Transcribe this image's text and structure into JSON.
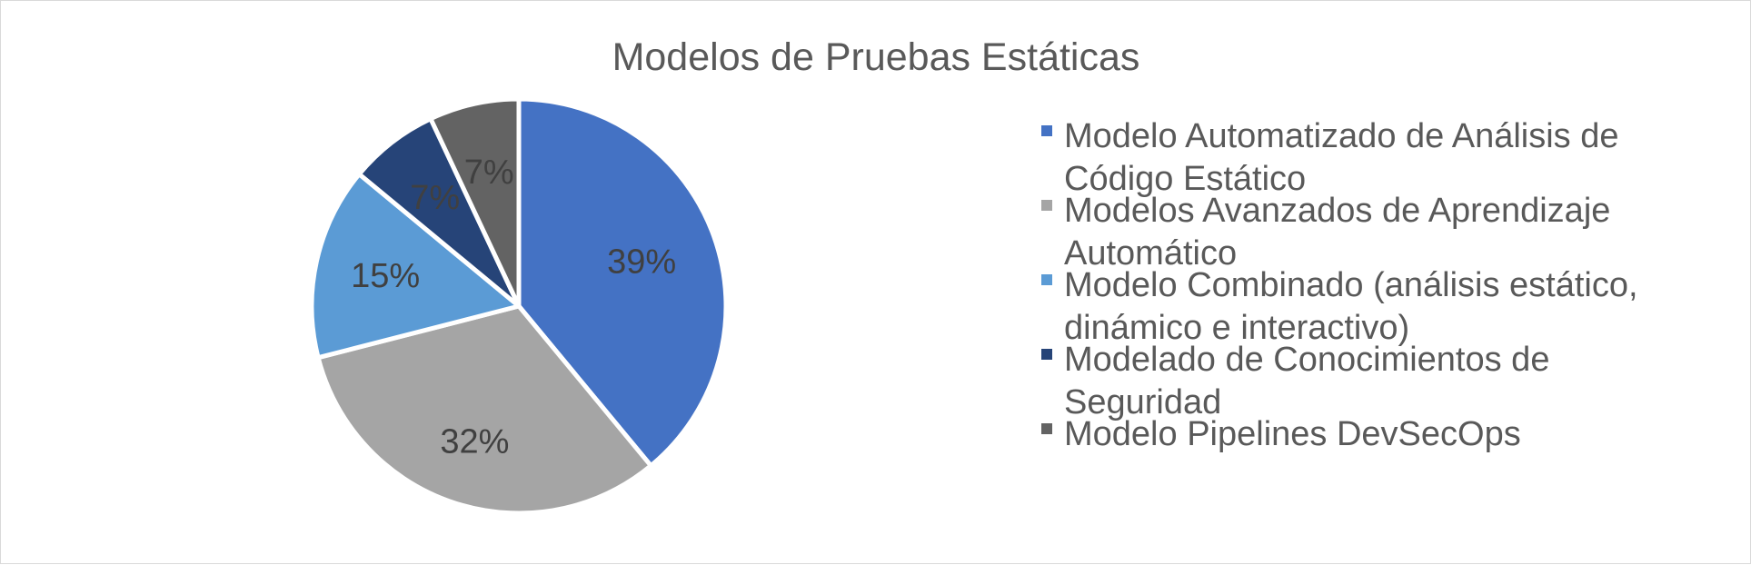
{
  "chart_data": {
    "type": "pie",
    "title": "Modelos de Pruebas Estáticas",
    "start_angle_deg": 0,
    "direction": "clockwise",
    "legend_position": "right",
    "slices": [
      {
        "label": "Modelo Automatizado de Análisis de Código Estático",
        "legend_lines": [
          "Modelo Automatizado de Análisis de",
          "Código Estático"
        ],
        "value": 39,
        "display": "39%",
        "color": "#4472c4"
      },
      {
        "label": "Modelos Avanzados de Aprendizaje Automático",
        "legend_lines": [
          "Modelos Avanzados de Aprendizaje",
          "Automático"
        ],
        "value": 32,
        "display": "32%",
        "color": "#a5a5a5"
      },
      {
        "label": "Modelo Combinado (análisis estático, dinámico e interactivo)",
        "legend_lines": [
          "Modelo Combinado (análisis estático,",
          "dinámico e interactivo)"
        ],
        "value": 15,
        "display": "15%",
        "color": "#5b9bd5"
      },
      {
        "label": "Modelado de Conocimientos de Seguridad",
        "legend_lines": [
          "Modelado de Conocimientos de",
          "Seguridad"
        ],
        "value": 7,
        "display": "7%",
        "color": "#264478"
      },
      {
        "label": "Modelo Pipelines DevSecOps",
        "legend_lines": [
          "Modelo Pipelines DevSecOps"
        ],
        "value": 7,
        "display": "7%",
        "color": "#636363"
      }
    ]
  }
}
